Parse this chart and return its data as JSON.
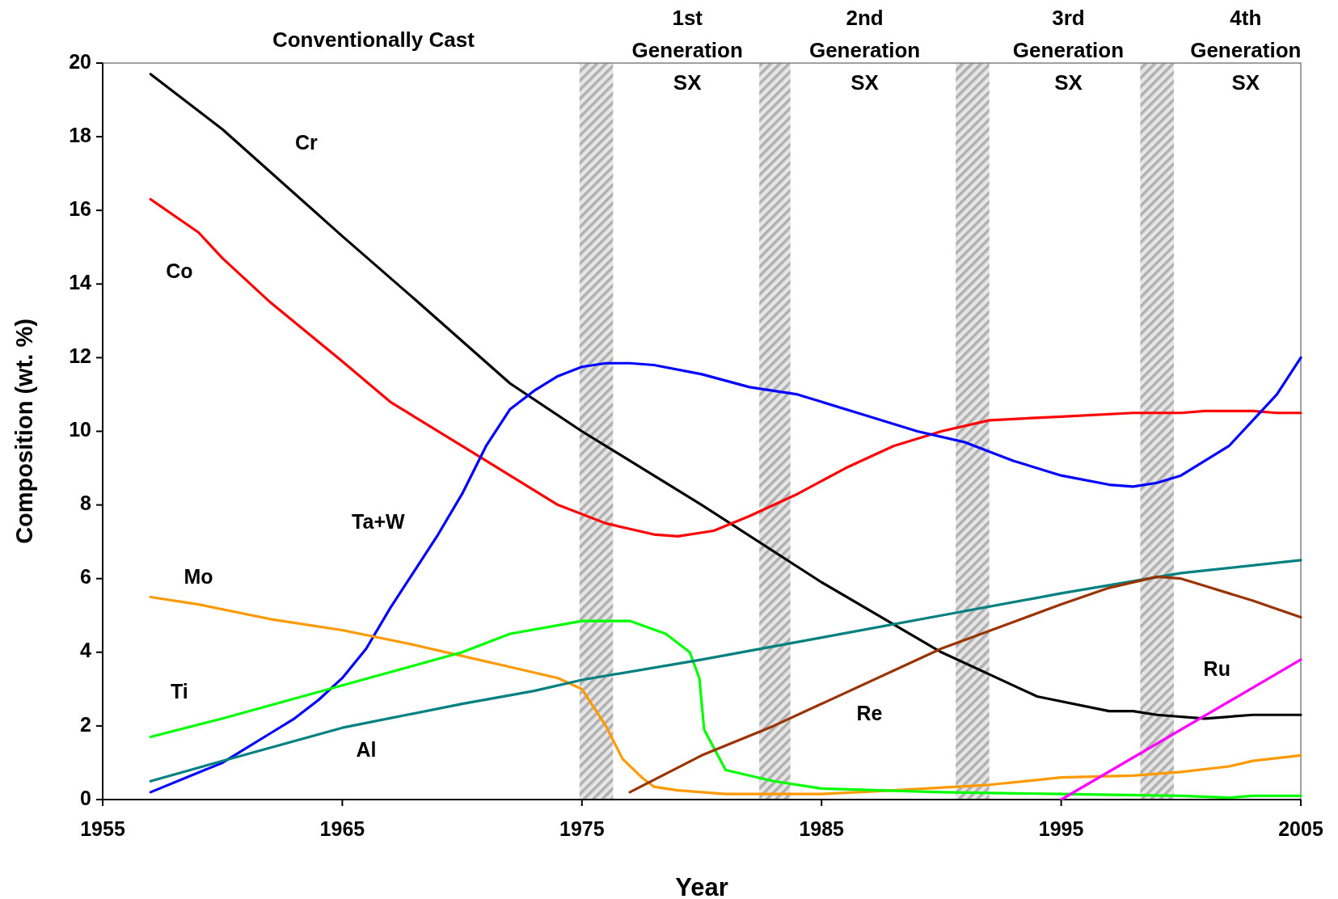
{
  "chart_data": {
    "type": "line",
    "xlabel": "Year",
    "ylabel": "Composition (wt. %)",
    "xlim": [
      1955,
      2005
    ],
    "xticks": [
      1955,
      1965,
      1975,
      1985,
      1995,
      2005
    ],
    "ylim": [
      0,
      20
    ],
    "yticks": [
      0,
      2,
      4,
      6,
      8,
      10,
      12,
      14,
      16,
      18,
      20
    ],
    "grid": false,
    "marker": "none",
    "line_style": "solid",
    "series": [
      {
        "name": "Cr",
        "color": "#000000",
        "x": [
          1957,
          1960,
          1965,
          1968,
          1972,
          1975,
          1977,
          1980,
          1985,
          1990,
          1992,
          1994,
          1997,
          1998,
          1999,
          2001,
          2003,
          2005
        ],
        "values": [
          19.7,
          18.2,
          15.3,
          13.6,
          11.3,
          10,
          9.2,
          8,
          5.9,
          4,
          3.4,
          2.8,
          2.4,
          2.4,
          2.3,
          2.2,
          2.3,
          2.3
        ]
      },
      {
        "name": "Co",
        "color": "#ff0000",
        "x": [
          1957,
          1959,
          1960,
          1962,
          1965,
          1967,
          1968,
          1970,
          1972,
          1974,
          1976,
          1978,
          1979,
          1980.5,
          1982,
          1984,
          1986,
          1988,
          1990,
          1992,
          1995,
          1998,
          2000,
          2001,
          2003,
          2004,
          2005
        ],
        "values": [
          16.3,
          15.4,
          14.7,
          13.5,
          11.9,
          10.8,
          10.4,
          9.6,
          8.8,
          8,
          7.5,
          7.2,
          7.15,
          7.3,
          7.7,
          8.3,
          9,
          9.6,
          10,
          10.3,
          10.4,
          10.5,
          10.5,
          10.55,
          10.55,
          10.5,
          10.5
        ]
      },
      {
        "name": "Ta+W",
        "color": "#0000ff",
        "x": [
          1957,
          1960,
          1962,
          1963,
          1964,
          1965,
          1966,
          1967,
          1968,
          1969,
          1970,
          1971,
          1972,
          1973,
          1974,
          1975,
          1976,
          1977,
          1978,
          1980,
          1982,
          1984,
          1985,
          1987,
          1989,
          1991,
          1993,
          1995,
          1997,
          1998,
          1999,
          2000,
          2001,
          2002,
          2003,
          2004,
          2005
        ],
        "values": [
          0.2,
          1,
          1.8,
          2.2,
          2.7,
          3.3,
          4.1,
          5.2,
          6.2,
          7.2,
          8.3,
          9.6,
          10.6,
          11.1,
          11.5,
          11.75,
          11.85,
          11.85,
          11.8,
          11.55,
          11.2,
          11,
          10.8,
          10.4,
          10,
          9.7,
          9.2,
          8.8,
          8.55,
          8.5,
          8.6,
          8.8,
          9.2,
          9.6,
          10.3,
          11,
          12
        ]
      },
      {
        "name": "Mo",
        "color": "#ff9900",
        "x": [
          1957,
          1959,
          1962,
          1965,
          1968,
          1970,
          1972,
          1974,
          1975,
          1976,
          1976.7,
          1977.5,
          1978,
          1979,
          1981,
          1985,
          1988,
          1992,
          1995,
          1998,
          2000,
          2002,
          2003,
          2005
        ],
        "values": [
          5.5,
          5.3,
          4.9,
          4.6,
          4.2,
          3.9,
          3.6,
          3.3,
          3,
          2,
          1.1,
          0.6,
          0.35,
          0.25,
          0.15,
          0.15,
          0.25,
          0.4,
          0.6,
          0.65,
          0.75,
          0.9,
          1.05,
          1.2
        ]
      },
      {
        "name": "Ti",
        "color": "#00ff00",
        "x": [
          1957,
          1960,
          1965,
          1970,
          1972,
          1975,
          1977,
          1978.5,
          1979.5,
          1979.9,
          1980.1,
          1981,
          1983,
          1985,
          1990,
          1995,
          2000,
          2002,
          2003,
          2005
        ],
        "values": [
          1.7,
          2.2,
          3.1,
          4,
          4.5,
          4.85,
          4.85,
          4.5,
          4,
          3.3,
          1.9,
          0.8,
          0.5,
          0.3,
          0.2,
          0.15,
          0.1,
          0.05,
          0.1,
          0.1
        ]
      },
      {
        "name": "Al",
        "color": "#008080",
        "x": [
          1957,
          1960,
          1965,
          1970,
          1973,
          1975,
          1980,
          1985,
          1990,
          1995,
          2000,
          2005
        ],
        "values": [
          0.5,
          1.05,
          1.95,
          2.6,
          2.95,
          3.25,
          3.8,
          4.4,
          5,
          5.6,
          6.15,
          6.5
        ]
      },
      {
        "name": "Re",
        "color": "#993300",
        "x": [
          1977,
          1980,
          1983,
          1985,
          1990,
          1995,
          1997,
          1999,
          2000,
          2001,
          2003,
          2005
        ],
        "values": [
          0.2,
          1.2,
          2,
          2.6,
          4.1,
          5.3,
          5.75,
          6.05,
          6,
          5.8,
          5.4,
          4.95
        ]
      },
      {
        "name": "Ru",
        "color": "#ff00ff",
        "x": [
          1995,
          2005
        ],
        "values": [
          0,
          3.8
        ]
      }
    ],
    "bands": [
      {
        "axis": "x",
        "from": 1974.9,
        "to": 1976.3,
        "color": "#b0b0b0"
      },
      {
        "axis": "x",
        "from": 1982.4,
        "to": 1983.7,
        "color": "#b0b0b0"
      },
      {
        "axis": "x",
        "from": 1990.6,
        "to": 1992,
        "color": "#b0b0b0"
      },
      {
        "axis": "x",
        "from": 1998.3,
        "to": 1999.7,
        "color": "#b0b0b0"
      }
    ],
    "annotations": [
      "Conventionally Cast",
      "1st\nGeneration\nSX",
      "2nd\nGeneration\nSX",
      "3rd\nGeneration\nSX",
      "4th\nGeneration\nSX"
    ]
  }
}
